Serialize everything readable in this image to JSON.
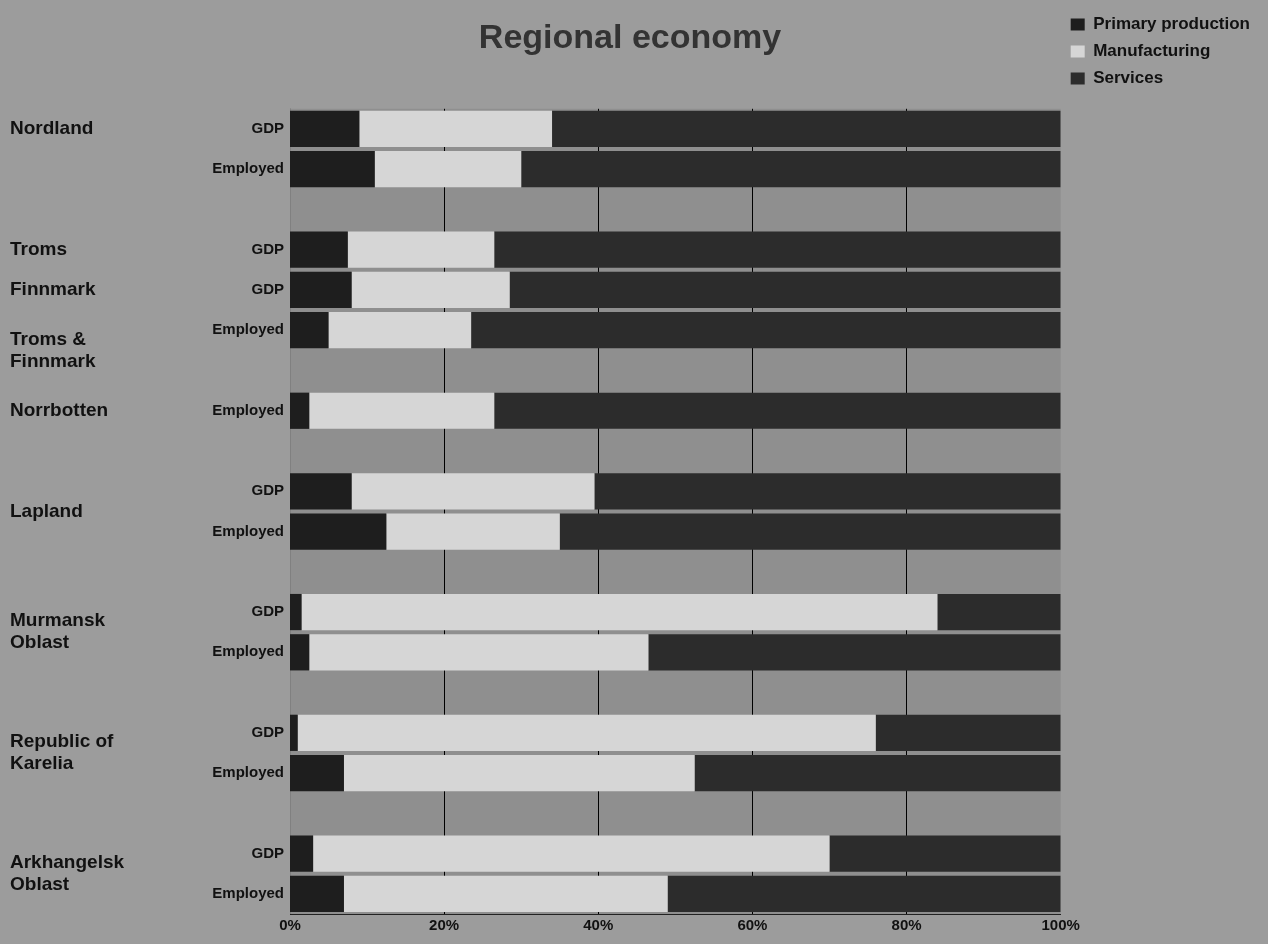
{
  "chart_data": {
    "type": "bar",
    "title": "Regional economy",
    "orientation": "horizontal",
    "stacked": true,
    "categories": [
      "GDP",
      "Employed",
      null,
      "GDP",
      "GDP",
      "Employed",
      null,
      "Employed",
      null,
      "GDP",
      "Employed",
      null,
      "GDP",
      "Employed",
      null,
      "GDP",
      "Employed",
      null,
      "GDP",
      "Employed"
    ],
    "series": [
      {
        "name": "Primary production",
        "color": "#1e1e1e",
        "values": [
          9,
          11,
          null,
          7.5,
          8,
          5,
          null,
          2.5,
          null,
          8,
          12.5,
          null,
          1.5,
          2.5,
          null,
          1,
          7,
          null,
          3,
          7
        ]
      },
      {
        "name": "Manufacturing",
        "color": "#d6d6d6",
        "values": [
          25,
          19,
          null,
          19,
          20.5,
          18.5,
          null,
          24,
          null,
          31.5,
          22.5,
          null,
          82.5,
          44,
          null,
          75,
          45.5,
          null,
          67,
          42
        ]
      },
      {
        "name": "Services",
        "color": "#2c2c2c",
        "values": [
          66,
          70,
          null,
          73.5,
          71.5,
          76.5,
          null,
          73.5,
          null,
          60.5,
          65,
          null,
          16,
          53.5,
          null,
          24,
          47.5,
          null,
          30,
          51
        ]
      }
    ],
    "xlim": [
      0,
      100
    ],
    "xticks": [
      {
        "value": 0,
        "label": "0%"
      },
      {
        "value": 20,
        "label": "20%"
      },
      {
        "value": 40,
        "label": "40%"
      },
      {
        "value": 60,
        "label": "60%"
      },
      {
        "value": 80,
        "label": "80%"
      },
      {
        "value": 100,
        "label": "100%"
      }
    ],
    "grid": "x",
    "legend": "top right",
    "annotations": [
      "Nordland",
      "Troms",
      "Finnmark",
      "Troms & Finnmark",
      "Norrbotten",
      "Lapland",
      "Murmansk Oblast",
      "Republic of Karelia",
      "Arkhangelsk Oblast"
    ]
  }
}
